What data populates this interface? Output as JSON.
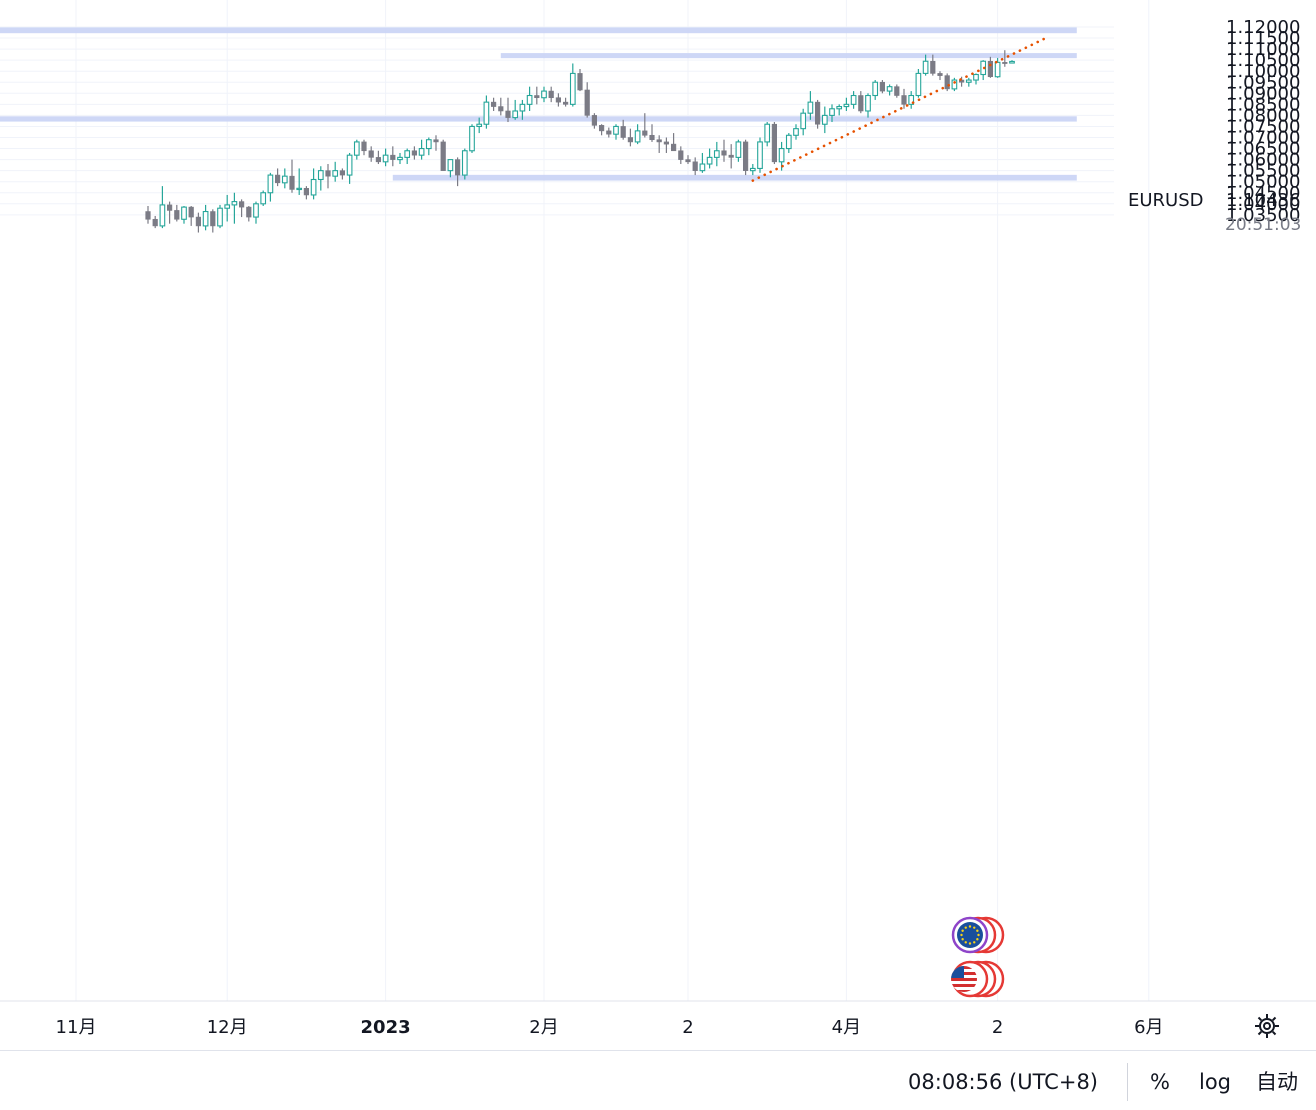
{
  "colors": {
    "up": "#26a69a",
    "down": "#7b7b85",
    "zone": "#c9d3f5",
    "trendline": "#e65100",
    "grid": "#f0f3fa"
  },
  "icons": {
    "settings": "gear-icon",
    "eu_event": "eu-flag-icon",
    "us_event": "us-flag-icon"
  },
  "chart_data": {
    "type": "candlestick",
    "symbol": "EURUSD",
    "last_price": "1.10436",
    "countdown": "20:51:03",
    "y_ticks": [
      "1.12000",
      "1.11500",
      "1.11000",
      "1.10500",
      "1.10000",
      "1.09500",
      "1.09000",
      "1.08500",
      "1.08000",
      "1.07500",
      "1.07000",
      "1.06500",
      "1.06000",
      "1.05500",
      "1.05000",
      "1.04500",
      "1.04000",
      "1.03500"
    ],
    "x_ticks": [
      {
        "label": "11月",
        "bold": false,
        "bar": -10
      },
      {
        "label": "12月",
        "bold": false,
        "bar": 11
      },
      {
        "label": "2023",
        "bold": true,
        "bar": 33
      },
      {
        "label": "2月",
        "bold": false,
        "bar": 55
      },
      {
        "label": "2",
        "bold": false,
        "bar": 75
      },
      {
        "label": "4月",
        "bold": false,
        "bar": 97
      },
      {
        "label": "2",
        "bold": false,
        "bar": 118
      },
      {
        "label": "6月",
        "bold": false,
        "bar": 139
      }
    ],
    "zones": [
      {
        "from_bar": -24,
        "to_bar": 129,
        "low": 1.1172,
        "high": 1.1198
      },
      {
        "from_bar": 49,
        "to_bar": 129,
        "low": 1.1059,
        "high": 1.1082
      },
      {
        "from_bar": -24,
        "to_bar": 129,
        "low": 1.0772,
        "high": 1.0796
      },
      {
        "from_bar": 34,
        "to_bar": 129,
        "low": 1.0505,
        "high": 1.0531
      }
    ],
    "trendline": {
      "from_bar": 84,
      "from_price": 1.0505,
      "to_bar": 125,
      "to_price": 1.1155
    },
    "candles": [
      [
        1.0365,
        1.039,
        1.031,
        1.033
      ],
      [
        1.033,
        1.0345,
        1.029,
        1.03
      ],
      [
        1.03,
        1.048,
        1.029,
        1.0395
      ],
      [
        1.0395,
        1.041,
        1.031,
        1.037
      ],
      [
        1.037,
        1.0395,
        1.032,
        1.033
      ],
      [
        1.033,
        1.039,
        1.031,
        1.0385
      ],
      [
        1.0385,
        1.039,
        1.03,
        1.034
      ],
      [
        1.034,
        1.036,
        1.027,
        1.03
      ],
      [
        1.03,
        1.0395,
        1.028,
        1.0365
      ],
      [
        1.0365,
        1.0375,
        1.027,
        1.03
      ],
      [
        1.03,
        1.0395,
        1.029,
        1.038
      ],
      [
        1.038,
        1.044,
        1.032,
        1.0395
      ],
      [
        1.0395,
        1.045,
        1.031,
        1.041
      ],
      [
        1.041,
        1.042,
        1.034,
        1.0385
      ],
      [
        1.0385,
        1.039,
        1.032,
        1.034
      ],
      [
        1.034,
        1.041,
        1.031,
        1.04
      ],
      [
        1.04,
        1.046,
        1.039,
        1.045
      ],
      [
        1.045,
        1.054,
        1.041,
        1.053
      ],
      [
        1.053,
        1.056,
        1.048,
        1.0495
      ],
      [
        1.0495,
        1.056,
        1.047,
        1.0525
      ],
      [
        1.0525,
        1.06,
        1.045,
        1.0465
      ],
      [
        1.0465,
        1.056,
        1.044,
        1.047
      ],
      [
        1.047,
        1.048,
        1.042,
        1.044
      ],
      [
        1.044,
        1.056,
        1.042,
        1.051
      ],
      [
        1.051,
        1.057,
        1.046,
        1.055
      ],
      [
        1.055,
        1.058,
        1.047,
        1.0525
      ],
      [
        1.0525,
        1.059,
        1.05,
        1.055
      ],
      [
        1.055,
        1.056,
        1.051,
        1.053
      ],
      [
        1.053,
        1.063,
        1.049,
        1.062
      ],
      [
        1.062,
        1.069,
        1.06,
        1.068
      ],
      [
        1.068,
        1.069,
        1.062,
        1.064
      ],
      [
        1.064,
        1.066,
        1.059,
        1.061
      ],
      [
        1.061,
        1.064,
        1.058,
        1.059
      ],
      [
        1.059,
        1.065,
        1.057,
        1.062
      ],
      [
        1.062,
        1.066,
        1.057,
        1.06
      ],
      [
        1.06,
        1.063,
        1.058,
        1.061
      ],
      [
        1.061,
        1.065,
        1.058,
        1.064
      ],
      [
        1.064,
        1.066,
        1.06,
        1.062
      ],
      [
        1.062,
        1.069,
        1.06,
        1.065
      ],
      [
        1.065,
        1.07,
        1.062,
        1.069
      ],
      [
        1.069,
        1.071,
        1.064,
        1.068
      ],
      [
        1.068,
        1.069,
        1.055,
        1.055
      ],
      [
        1.055,
        1.06,
        1.052,
        1.06
      ],
      [
        1.06,
        1.061,
        1.048,
        1.053
      ],
      [
        1.053,
        1.065,
        1.051,
        1.064
      ],
      [
        1.064,
        1.076,
        1.063,
        1.075
      ],
      [
        1.075,
        1.079,
        1.072,
        1.076
      ],
      [
        1.076,
        1.089,
        1.074,
        1.086
      ],
      [
        1.086,
        1.088,
        1.082,
        1.084
      ],
      [
        1.084,
        1.088,
        1.08,
        1.082
      ],
      [
        1.082,
        1.088,
        1.077,
        1.079
      ],
      [
        1.079,
        1.087,
        1.078,
        1.082
      ],
      [
        1.082,
        1.087,
        1.078,
        1.085
      ],
      [
        1.085,
        1.093,
        1.082,
        1.089
      ],
      [
        1.089,
        1.093,
        1.085,
        1.088
      ],
      [
        1.088,
        1.093,
        1.086,
        1.091
      ],
      [
        1.091,
        1.093,
        1.086,
        1.088
      ],
      [
        1.088,
        1.09,
        1.084,
        1.086
      ],
      [
        1.086,
        1.088,
        1.084,
        1.085
      ],
      [
        1.085,
        1.1035,
        1.084,
        1.099
      ],
      [
        1.099,
        1.101,
        1.091,
        1.0915
      ],
      [
        1.0915,
        1.095,
        1.079,
        1.08
      ],
      [
        1.08,
        1.081,
        1.074,
        1.0755
      ],
      [
        1.0755,
        1.076,
        1.071,
        1.073
      ],
      [
        1.073,
        1.0745,
        1.07,
        1.0715
      ],
      [
        1.0715,
        1.076,
        1.069,
        1.075
      ],
      [
        1.075,
        1.078,
        1.069,
        1.07
      ],
      [
        1.07,
        1.074,
        1.066,
        1.068
      ],
      [
        1.068,
        1.076,
        1.067,
        1.073
      ],
      [
        1.073,
        1.081,
        1.07,
        1.071
      ],
      [
        1.071,
        1.076,
        1.068,
        1.069
      ],
      [
        1.069,
        1.071,
        1.063,
        1.068
      ],
      [
        1.068,
        1.07,
        1.063,
        1.067
      ],
      [
        1.067,
        1.072,
        1.064,
        1.064
      ],
      [
        1.064,
        1.066,
        1.058,
        1.06
      ],
      [
        1.06,
        1.062,
        1.058,
        1.059
      ],
      [
        1.059,
        1.061,
        1.053,
        1.055
      ],
      [
        1.055,
        1.063,
        1.054,
        1.058
      ],
      [
        1.058,
        1.065,
        1.056,
        1.061
      ],
      [
        1.061,
        1.068,
        1.057,
        1.064
      ],
      [
        1.064,
        1.069,
        1.059,
        1.062
      ],
      [
        1.062,
        1.067,
        1.056,
        1.061
      ],
      [
        1.061,
        1.069,
        1.059,
        1.068
      ],
      [
        1.068,
        1.069,
        1.053,
        1.055
      ],
      [
        1.055,
        1.058,
        1.053,
        1.056
      ],
      [
        1.056,
        1.07,
        1.054,
        1.068
      ],
      [
        1.068,
        1.077,
        1.066,
        1.076
      ],
      [
        1.076,
        1.077,
        1.058,
        1.059
      ],
      [
        1.059,
        1.068,
        1.055,
        1.065
      ],
      [
        1.065,
        1.072,
        1.063,
        1.071
      ],
      [
        1.071,
        1.076,
        1.069,
        1.074
      ],
      [
        1.074,
        1.083,
        1.071,
        1.081
      ],
      [
        1.081,
        1.091,
        1.078,
        1.086
      ],
      [
        1.086,
        1.087,
        1.074,
        1.076
      ],
      [
        1.076,
        1.084,
        1.072,
        1.08
      ],
      [
        1.08,
        1.085,
        1.077,
        1.083
      ],
      [
        1.083,
        1.085,
        1.08,
        1.084
      ],
      [
        1.084,
        1.088,
        1.082,
        1.085
      ],
      [
        1.085,
        1.091,
        1.083,
        1.089
      ],
      [
        1.089,
        1.091,
        1.081,
        1.082
      ],
      [
        1.082,
        1.09,
        1.079,
        1.089
      ],
      [
        1.089,
        1.096,
        1.087,
        1.095
      ],
      [
        1.095,
        1.096,
        1.09,
        1.091
      ],
      [
        1.091,
        1.094,
        1.089,
        1.093
      ],
      [
        1.093,
        1.094,
        1.088,
        1.089
      ],
      [
        1.089,
        1.092,
        1.083,
        1.085
      ],
      [
        1.085,
        1.091,
        1.083,
        1.089
      ],
      [
        1.089,
        1.101,
        1.088,
        1.099
      ],
      [
        1.099,
        1.1075,
        1.098,
        1.1045
      ],
      [
        1.1045,
        1.1075,
        1.098,
        1.099
      ],
      [
        1.099,
        1.1,
        1.096,
        1.098
      ],
      [
        1.098,
        1.099,
        1.091,
        1.092
      ],
      [
        1.092,
        1.097,
        1.091,
        1.096
      ],
      [
        1.096,
        1.0975,
        1.093,
        1.095
      ],
      [
        1.095,
        1.097,
        1.093,
        1.096
      ],
      [
        1.096,
        1.099,
        1.094,
        1.0985
      ],
      [
        1.0985,
        1.105,
        1.096,
        1.1045
      ],
      [
        1.1045,
        1.1065,
        1.097,
        1.0975
      ],
      [
        1.0975,
        1.106,
        1.097,
        1.104
      ],
      [
        1.104,
        1.1095,
        1.102,
        1.1037
      ],
      [
        1.1037,
        1.105,
        1.1035,
        1.1044
      ]
    ]
  },
  "bottom_bar": {
    "clock": "08:08:56 (UTC+8)",
    "percent": "%",
    "log": "log",
    "auto": "自动"
  }
}
